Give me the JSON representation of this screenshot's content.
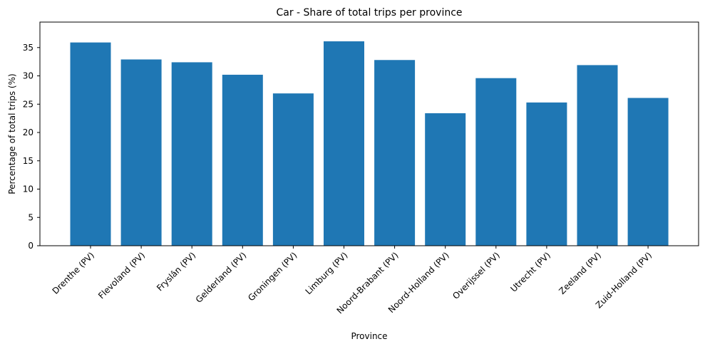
{
  "chart_data": {
    "type": "bar",
    "title": "Car - Share of total trips per province",
    "xlabel": "Province",
    "ylabel": "Percentage of total trips (%)",
    "categories": [
      "Drenthe (PV)",
      "Flevoland (PV)",
      "Fryslân (PV)",
      "Gelderland (PV)",
      "Groningen (PV)",
      "Limburg (PV)",
      "Noord-Brabant (PV)",
      "Noord-Holland (PV)",
      "Overijssel (PV)",
      "Utrecht (PV)",
      "Zeeland (PV)",
      "Zuid-Holland (PV)"
    ],
    "values": [
      35.9,
      32.9,
      32.4,
      30.2,
      26.9,
      36.1,
      32.8,
      23.4,
      29.6,
      25.3,
      31.9,
      26.1
    ],
    "ylim": [
      0,
      39.5
    ],
    "yticks": [
      "0",
      "5",
      "10",
      "15",
      "20",
      "25",
      "30",
      "35"
    ],
    "grid": false,
    "bar_color": "#1f77b4"
  }
}
